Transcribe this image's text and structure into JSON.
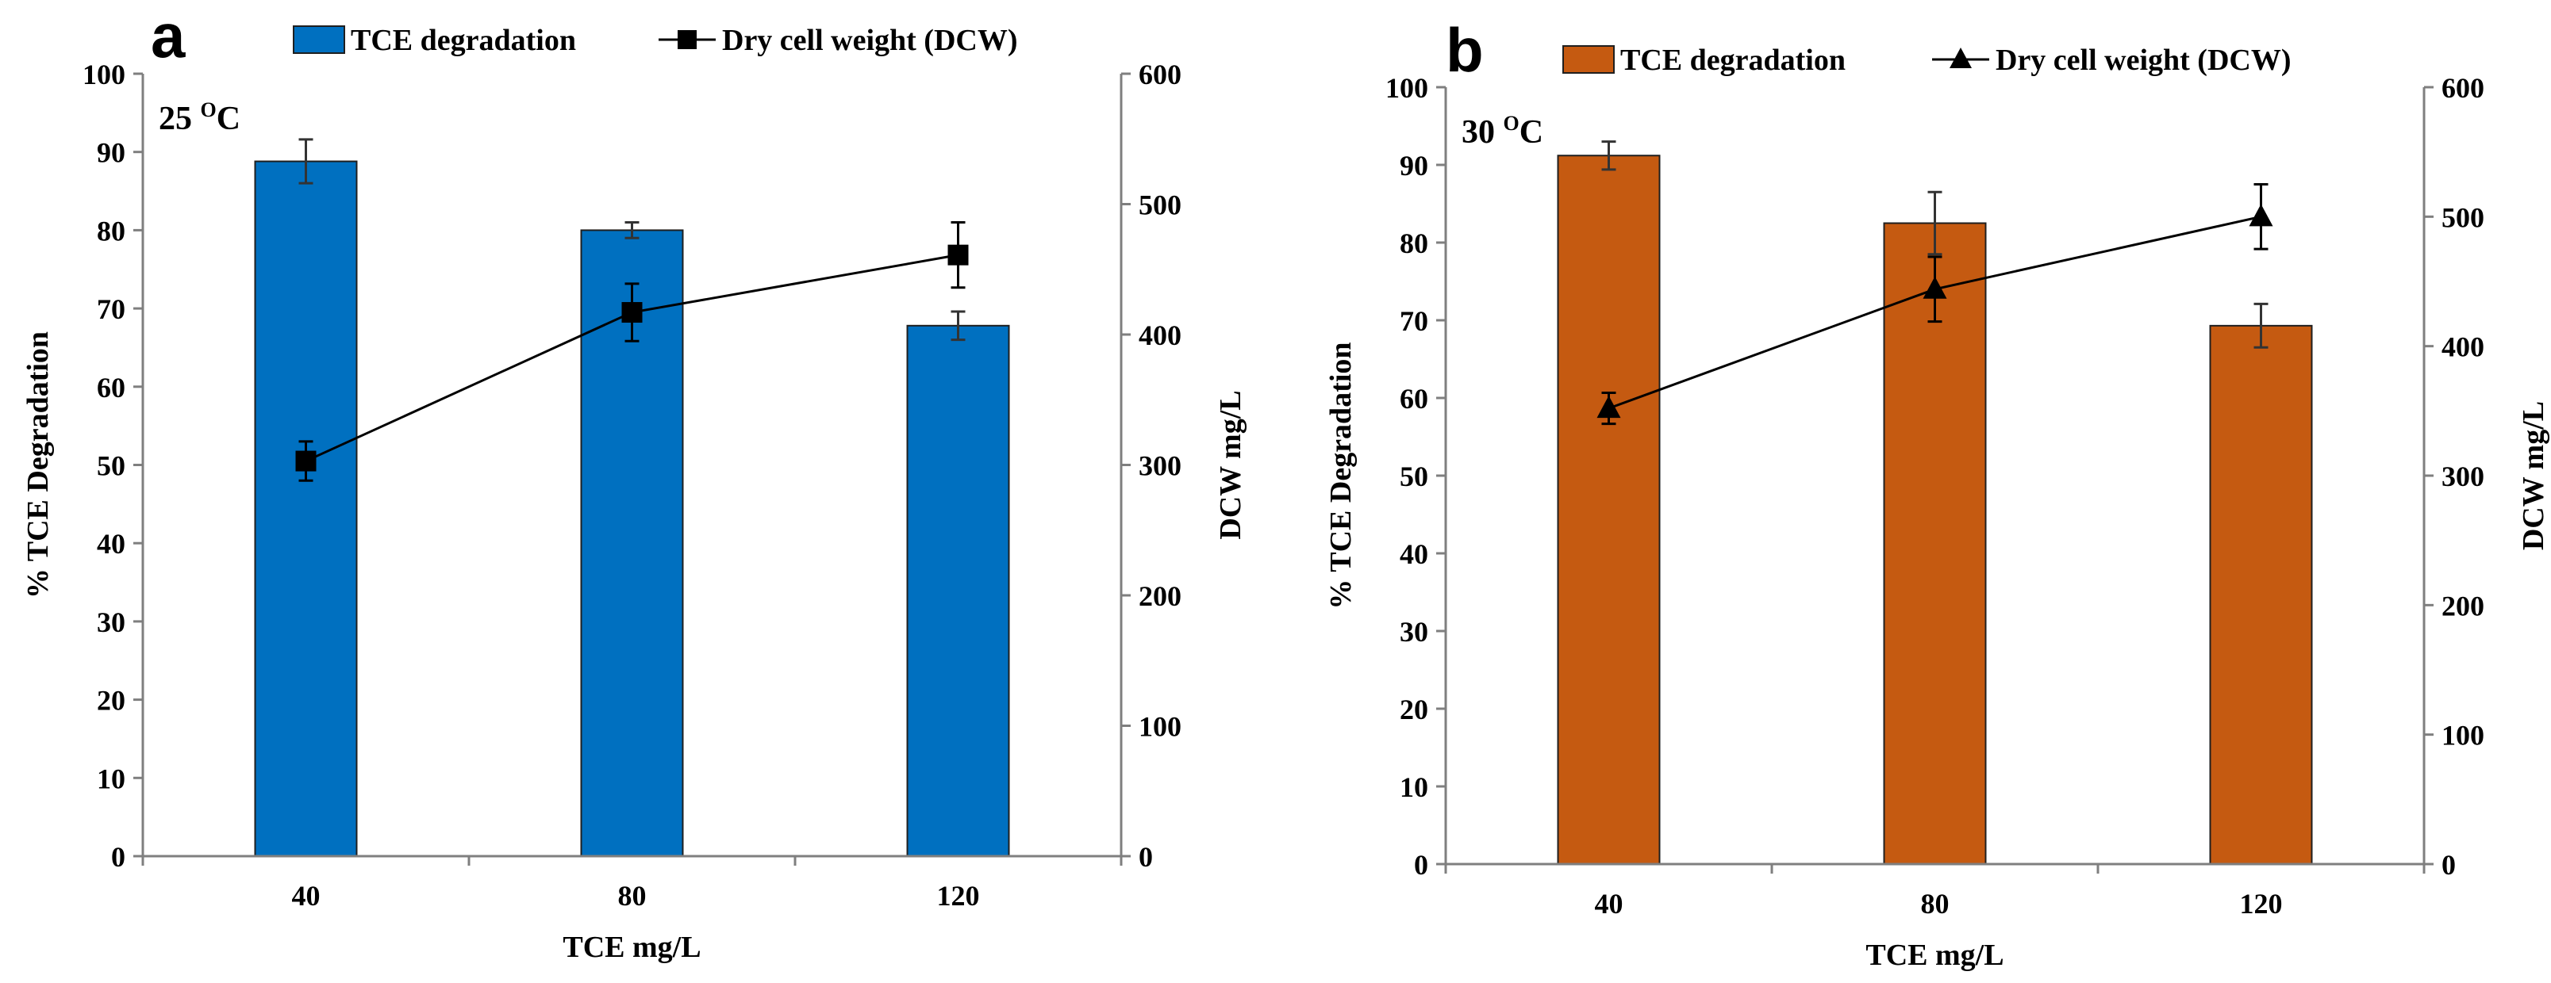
{
  "chart_data": [
    {
      "type": "bar",
      "panel_label": "a",
      "temperature": {
        "value": "25",
        "superscript": "O",
        "unit": "C"
      },
      "categories": [
        "40",
        "80",
        "120"
      ],
      "bar_color": "#0070C0",
      "marker": "square",
      "series": [
        {
          "name": "TCE degradation",
          "axis": "left",
          "values": [
            88.8,
            80.0,
            67.8
          ],
          "errors": [
            2.8,
            1.0,
            1.8
          ]
        },
        {
          "name": "Dry cell weight (DCW)",
          "axis": "right",
          "values": [
            303,
            417,
            461
          ],
          "errors": [
            15,
            22,
            25
          ]
        }
      ],
      "xlabel": "TCE mg/L",
      "ylabel": "% TCE Degradation",
      "y2label": "DCW mg/L",
      "ylim": [
        0,
        100
      ],
      "y2lim": [
        0,
        600
      ],
      "yticks": [
        "0",
        "10",
        "20",
        "30",
        "40",
        "50",
        "60",
        "70",
        "80",
        "90",
        "100"
      ],
      "y2ticks": [
        "0",
        "100",
        "200",
        "300",
        "400",
        "500",
        "600"
      ]
    },
    {
      "type": "bar",
      "panel_label": "b",
      "temperature": {
        "value": "30",
        "superscript": "O",
        "unit": "C"
      },
      "categories": [
        "40",
        "80",
        "120"
      ],
      "bar_color": "#C55A11",
      "marker": "triangle",
      "series": [
        {
          "name": "TCE degradation",
          "axis": "left",
          "values": [
            91.2,
            82.5,
            69.3
          ],
          "errors": [
            1.8,
            4.0,
            2.8
          ]
        },
        {
          "name": "Dry cell weight (DCW)",
          "axis": "right",
          "values": [
            352,
            444,
            500
          ],
          "errors": [
            12,
            25,
            25
          ]
        }
      ],
      "xlabel": "TCE mg/L",
      "ylabel": "% TCE Degradation",
      "y2label": "DCW mg/L",
      "ylim": [
        0,
        100
      ],
      "y2lim": [
        0,
        600
      ],
      "yticks": [
        "0",
        "10",
        "20",
        "30",
        "40",
        "50",
        "60",
        "70",
        "80",
        "90",
        "100"
      ],
      "y2ticks": [
        "0",
        "100",
        "200",
        "300",
        "400",
        "500",
        "600"
      ]
    }
  ]
}
